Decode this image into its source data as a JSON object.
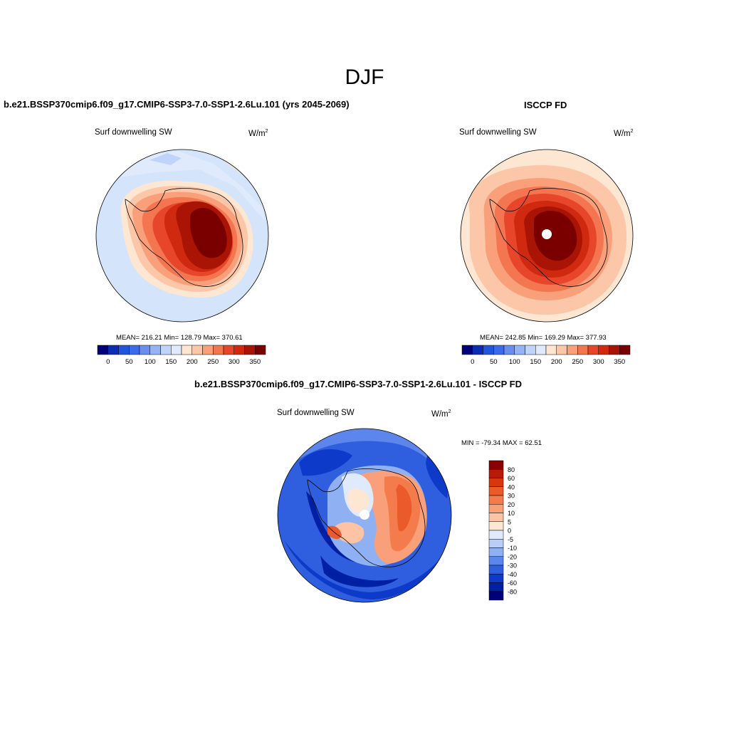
{
  "figure": {
    "title": "DJF",
    "variable": "Surf downwelling SW",
    "units": "W/m",
    "units_exp": "2"
  },
  "chart_data": [
    {
      "type": "heatmap",
      "projection": "south-polar-stereographic",
      "title": "b.e21.BSSP370cmip6.f09_g17.CMIP6-SSP3-7.0-SSP1-2.6Lu.101 (yrs 2045-2069)",
      "subtitle": "Surf downwelling SW",
      "units": "W/m2",
      "stats_text": "MEAN= 216.21  Min= 128.79  Max= 370.61",
      "mean": 216.21,
      "min": 128.79,
      "max": 370.61,
      "levels": [
        0,
        25,
        50,
        75,
        100,
        125,
        150,
        175,
        200,
        225,
        250,
        275,
        300,
        325,
        350
      ],
      "tick_labels": [
        "0",
        "50",
        "100",
        "150",
        "200",
        "250",
        "300",
        "350"
      ],
      "colors": [
        "#000078",
        "#0b2db4",
        "#2155dc",
        "#3c6ae8",
        "#6a8df0",
        "#96b4f5",
        "#c0d4fa",
        "#dfeafc",
        "#fde6d2",
        "#fcc7a8",
        "#f9a07a",
        "#f47650",
        "#e7462a",
        "#cf2a10",
        "#a91404",
        "#7a0000"
      ]
    },
    {
      "type": "heatmap",
      "projection": "south-polar-stereographic",
      "title": "ISCCP FD",
      "subtitle": "Surf downwelling SW",
      "units": "W/m2",
      "stats_text": "MEAN= 242.85  Min= 169.29  Max= 377.93",
      "mean": 242.85,
      "min": 169.29,
      "max": 377.93,
      "levels": [
        0,
        25,
        50,
        75,
        100,
        125,
        150,
        175,
        200,
        225,
        250,
        275,
        300,
        325,
        350
      ],
      "tick_labels": [
        "0",
        "50",
        "100",
        "150",
        "200",
        "250",
        "300",
        "350"
      ],
      "colors": [
        "#000078",
        "#0b2db4",
        "#2155dc",
        "#3c6ae8",
        "#6a8df0",
        "#96b4f5",
        "#c0d4fa",
        "#dfeafc",
        "#fde6d2",
        "#fcc7a8",
        "#f9a07a",
        "#f47650",
        "#e7462a",
        "#cf2a10",
        "#a91404",
        "#7a0000"
      ]
    },
    {
      "type": "heatmap",
      "projection": "south-polar-stereographic",
      "title": "b.e21.BSSP370cmip6.f09_g17.CMIP6-SSP3-7.0-SSP1-2.6Lu.101 - ISCCP FD",
      "subtitle": "Surf downwelling SW",
      "units": "W/m2",
      "stats_text": "MIN = -79.34 MAX =  62.51",
      "min": -79.34,
      "max": 62.51,
      "levels": [
        80,
        60,
        40,
        30,
        20,
        10,
        5,
        0,
        -5,
        -10,
        -20,
        -30,
        -40,
        -60,
        -80
      ],
      "tick_labels": [
        "80",
        "60",
        "40",
        "30",
        "20",
        "10",
        "5",
        "0",
        "-5",
        "-10",
        "-20",
        "-30",
        "-40",
        "-60",
        "-80"
      ],
      "colors": [
        "#8a0000",
        "#b71a06",
        "#d8360e",
        "#ea5a2a",
        "#f47c4c",
        "#f9a077",
        "#fcc4a5",
        "#fde6d2",
        "#dfeafc",
        "#b9cdf8",
        "#8fb0f3",
        "#5c86ec",
        "#2f5fdf",
        "#0d3ac8",
        "#0020a4",
        "#000078"
      ]
    }
  ]
}
